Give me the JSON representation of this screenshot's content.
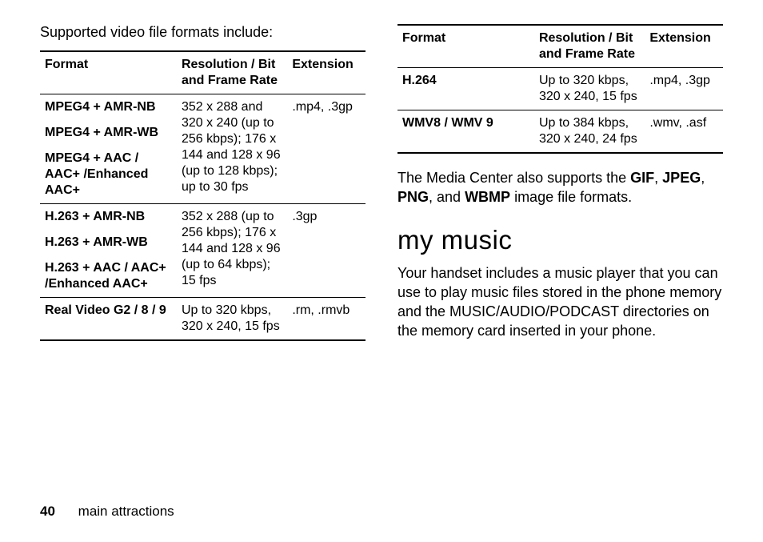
{
  "intro_text": "Supported video file formats include:",
  "table_headers": {
    "format": "Format",
    "resolution": "Resolution / Bit and Frame Rate",
    "extension": "Extension"
  },
  "left_table": {
    "groups": [
      {
        "formats": [
          "MPEG4 + AMR-NB",
          "MPEG4 + AMR-WB",
          "MPEG4 + AAC / AAC+ /Enhanced AAC+"
        ],
        "resolution": "352 x 288 and 320 x 240 (up to 256 kbps); 176 x 144 and 128 x 96 (up to 128 kbps); up to 30 fps",
        "extension": ".mp4, .3gp"
      },
      {
        "formats": [
          "H.263 + AMR-NB",
          "H.263 + AMR-WB",
          "H.263 + AAC / AAC+ /Enhanced AAC+"
        ],
        "resolution": "352 x 288 (up to 256 kbps); 176 x 144 and 128 x 96 (up to 64 kbps); 15 fps",
        "extension": ".3gp"
      },
      {
        "formats": [
          "Real Video G2 / 8 / 9"
        ],
        "resolution": "Up to 320 kbps, 320 x 240, 15 fps",
        "extension": ".rm, .rmvb"
      }
    ]
  },
  "right_table": {
    "groups": [
      {
        "formats": [
          "H.264"
        ],
        "resolution": "Up to 320 kbps, 320 x 240, 15 fps",
        "extension": ".mp4, .3gp"
      },
      {
        "formats": [
          "WMV8 / WMV 9"
        ],
        "resolution": "Up to 384 kbps, 320 x 240, 24 fps",
        "extension": ".wmv, .asf"
      }
    ]
  },
  "media_text": {
    "pre": "The Media Center also supports the ",
    "f1": "GIF",
    "sep1": ", ",
    "f2": "JPEG",
    "sep2": ", ",
    "f3": "PNG",
    "sep3": ", and ",
    "f4": "WBMP",
    "post": " image file formats."
  },
  "heading": "my music",
  "body_text": "Your handset includes a music player that you can use to play music files stored in the phone memory and the MUSIC/AUDIO/PODCAST directories on the memory card inserted in your phone.",
  "footer": {
    "page": "40",
    "section": "main attractions"
  }
}
